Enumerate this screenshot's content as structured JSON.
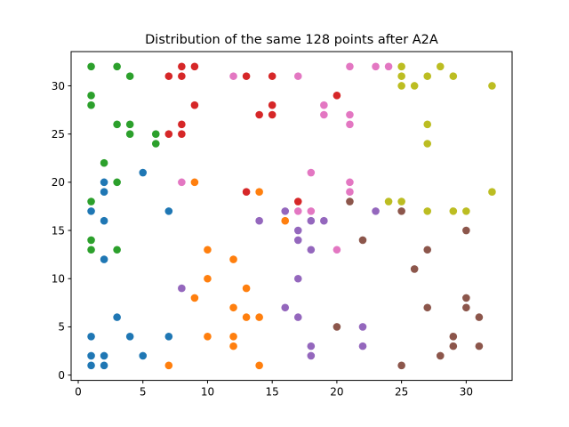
{
  "chart_data": {
    "type": "scatter",
    "title": "Distribution of the same 128 points after A2A",
    "xlabel": "",
    "ylabel": "",
    "xlim": [
      -0.55,
      33.55
    ],
    "ylim": [
      -0.55,
      33.55
    ],
    "xticks": [
      0,
      5,
      10,
      15,
      20,
      25,
      30
    ],
    "yticks": [
      0,
      5,
      10,
      15,
      20,
      25,
      30
    ],
    "grid": false,
    "legend": "none",
    "series": [
      {
        "color": "#1f77b4",
        "points": [
          [
            1,
            17
          ],
          [
            1,
            4
          ],
          [
            1,
            2
          ],
          [
            1,
            1
          ],
          [
            2,
            20
          ],
          [
            2,
            19
          ],
          [
            2,
            16
          ],
          [
            2,
            12
          ],
          [
            2,
            2
          ],
          [
            2,
            1
          ],
          [
            3,
            6
          ],
          [
            4,
            4
          ],
          [
            5,
            21
          ],
          [
            5,
            2
          ],
          [
            7,
            17
          ],
          [
            7,
            4
          ]
        ]
      },
      {
        "color": "#ff7f0e",
        "points": [
          [
            7,
            1
          ],
          [
            9,
            20
          ],
          [
            9,
            8
          ],
          [
            10,
            13
          ],
          [
            10,
            10
          ],
          [
            10,
            4
          ],
          [
            12,
            12
          ],
          [
            12,
            7
          ],
          [
            12,
            4
          ],
          [
            12,
            3
          ],
          [
            13,
            9
          ],
          [
            13,
            6
          ],
          [
            14,
            19
          ],
          [
            14,
            6
          ],
          [
            14,
            1
          ],
          [
            16,
            16
          ]
        ]
      },
      {
        "color": "#2ca02c",
        "points": [
          [
            1,
            32
          ],
          [
            1,
            29
          ],
          [
            1,
            28
          ],
          [
            1,
            18
          ],
          [
            1,
            14
          ],
          [
            1,
            13
          ],
          [
            2,
            22
          ],
          [
            3,
            32
          ],
          [
            3,
            26
          ],
          [
            3,
            20
          ],
          [
            3,
            13
          ],
          [
            4,
            31
          ],
          [
            4,
            26
          ],
          [
            4,
            25
          ],
          [
            6,
            25
          ],
          [
            6,
            24
          ]
        ]
      },
      {
        "color": "#d62728",
        "points": [
          [
            7,
            31
          ],
          [
            7,
            25
          ],
          [
            8,
            32
          ],
          [
            8,
            31
          ],
          [
            8,
            26
          ],
          [
            8,
            25
          ],
          [
            9,
            32
          ],
          [
            9,
            28
          ],
          [
            13,
            31
          ],
          [
            13,
            19
          ],
          [
            14,
            27
          ],
          [
            15,
            31
          ],
          [
            15,
            28
          ],
          [
            15,
            27
          ],
          [
            17,
            18
          ],
          [
            20,
            29
          ]
        ]
      },
      {
        "color": "#9467bd",
        "points": [
          [
            8,
            9
          ],
          [
            14,
            16
          ],
          [
            16,
            17
          ],
          [
            16,
            7
          ],
          [
            17,
            15
          ],
          [
            17,
            14
          ],
          [
            17,
            10
          ],
          [
            17,
            6
          ],
          [
            18,
            16
          ],
          [
            18,
            13
          ],
          [
            18,
            3
          ],
          [
            18,
            2
          ],
          [
            19,
            16
          ],
          [
            22,
            5
          ],
          [
            22,
            3
          ],
          [
            23,
            17
          ]
        ]
      },
      {
        "color": "#8c564b",
        "points": [
          [
            20,
            5
          ],
          [
            21,
            18
          ],
          [
            22,
            14
          ],
          [
            25,
            17
          ],
          [
            25,
            1
          ],
          [
            26,
            11
          ],
          [
            27,
            13
          ],
          [
            27,
            7
          ],
          [
            28,
            2
          ],
          [
            29,
            4
          ],
          [
            29,
            3
          ],
          [
            30,
            15
          ],
          [
            30,
            8
          ],
          [
            30,
            7
          ],
          [
            31,
            6
          ],
          [
            31,
            3
          ]
        ]
      },
      {
        "color": "#e377c2",
        "points": [
          [
            8,
            20
          ],
          [
            12,
            31
          ],
          [
            17,
            31
          ],
          [
            17,
            17
          ],
          [
            18,
            21
          ],
          [
            18,
            17
          ],
          [
            19,
            28
          ],
          [
            19,
            27
          ],
          [
            20,
            13
          ],
          [
            21,
            32
          ],
          [
            21,
            27
          ],
          [
            21,
            26
          ],
          [
            21,
            20
          ],
          [
            21,
            19
          ],
          [
            23,
            32
          ],
          [
            24,
            32
          ]
        ]
      },
      {
        "color": "#bcbd22",
        "points": [
          [
            24,
            18
          ],
          [
            25,
            32
          ],
          [
            25,
            31
          ],
          [
            25,
            30
          ],
          [
            25,
            18
          ],
          [
            26,
            30
          ],
          [
            27,
            31
          ],
          [
            27,
            26
          ],
          [
            27,
            24
          ],
          [
            27,
            17
          ],
          [
            28,
            32
          ],
          [
            29,
            31
          ],
          [
            29,
            17
          ],
          [
            30,
            17
          ],
          [
            32,
            30
          ],
          [
            32,
            19
          ]
        ]
      }
    ]
  }
}
